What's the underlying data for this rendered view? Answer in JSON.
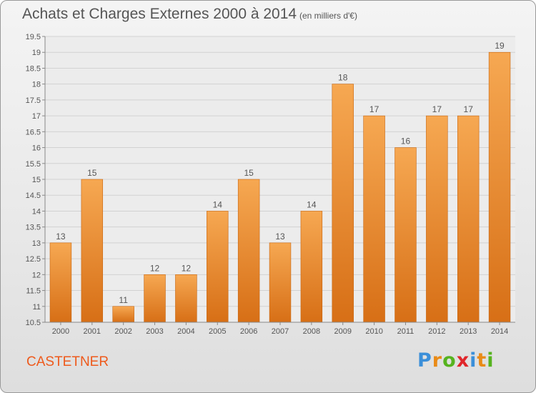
{
  "title": "Achats et Charges Externes 2000 à 2014",
  "subtitle": "(en milliers d'€)",
  "commune": "CASTETNER",
  "logo": {
    "text": "Proxiti",
    "letters": [
      "P",
      "r",
      "o",
      "x",
      "i",
      "t",
      "i"
    ],
    "colors": [
      "#3b8fd9",
      "#e98b17",
      "#56b31f",
      "#e0262b",
      "#3b8fd9",
      "#e98b17",
      "#56b31f"
    ]
  },
  "chart_data": {
    "type": "bar",
    "categories": [
      "2000",
      "2001",
      "2002",
      "2003",
      "2004",
      "2005",
      "2006",
      "2007",
      "2008",
      "2009",
      "2010",
      "2011",
      "2012",
      "2013",
      "2014"
    ],
    "values": [
      13,
      15,
      11,
      12,
      12,
      14,
      15,
      13,
      14,
      18,
      17,
      16,
      17,
      17,
      19
    ],
    "data_labels": [
      "13",
      "15",
      "11",
      "12",
      "12",
      "14",
      "15",
      "13",
      "14",
      "18",
      "17",
      "16",
      "17",
      "17",
      "19"
    ],
    "yticks": [
      "10.5",
      "11",
      "11.5",
      "12",
      "12.5",
      "13",
      "13.5",
      "14",
      "14.5",
      "15",
      "15.5",
      "16",
      "16.5",
      "17",
      "17.5",
      "18",
      "18.5",
      "19",
      "19.5"
    ],
    "ylim": [
      10.5,
      19.5
    ],
    "xlabel": "",
    "ylabel": "",
    "grid": true,
    "bar_color_top": "#f6a852",
    "bar_color_bottom": "#d76f16"
  }
}
